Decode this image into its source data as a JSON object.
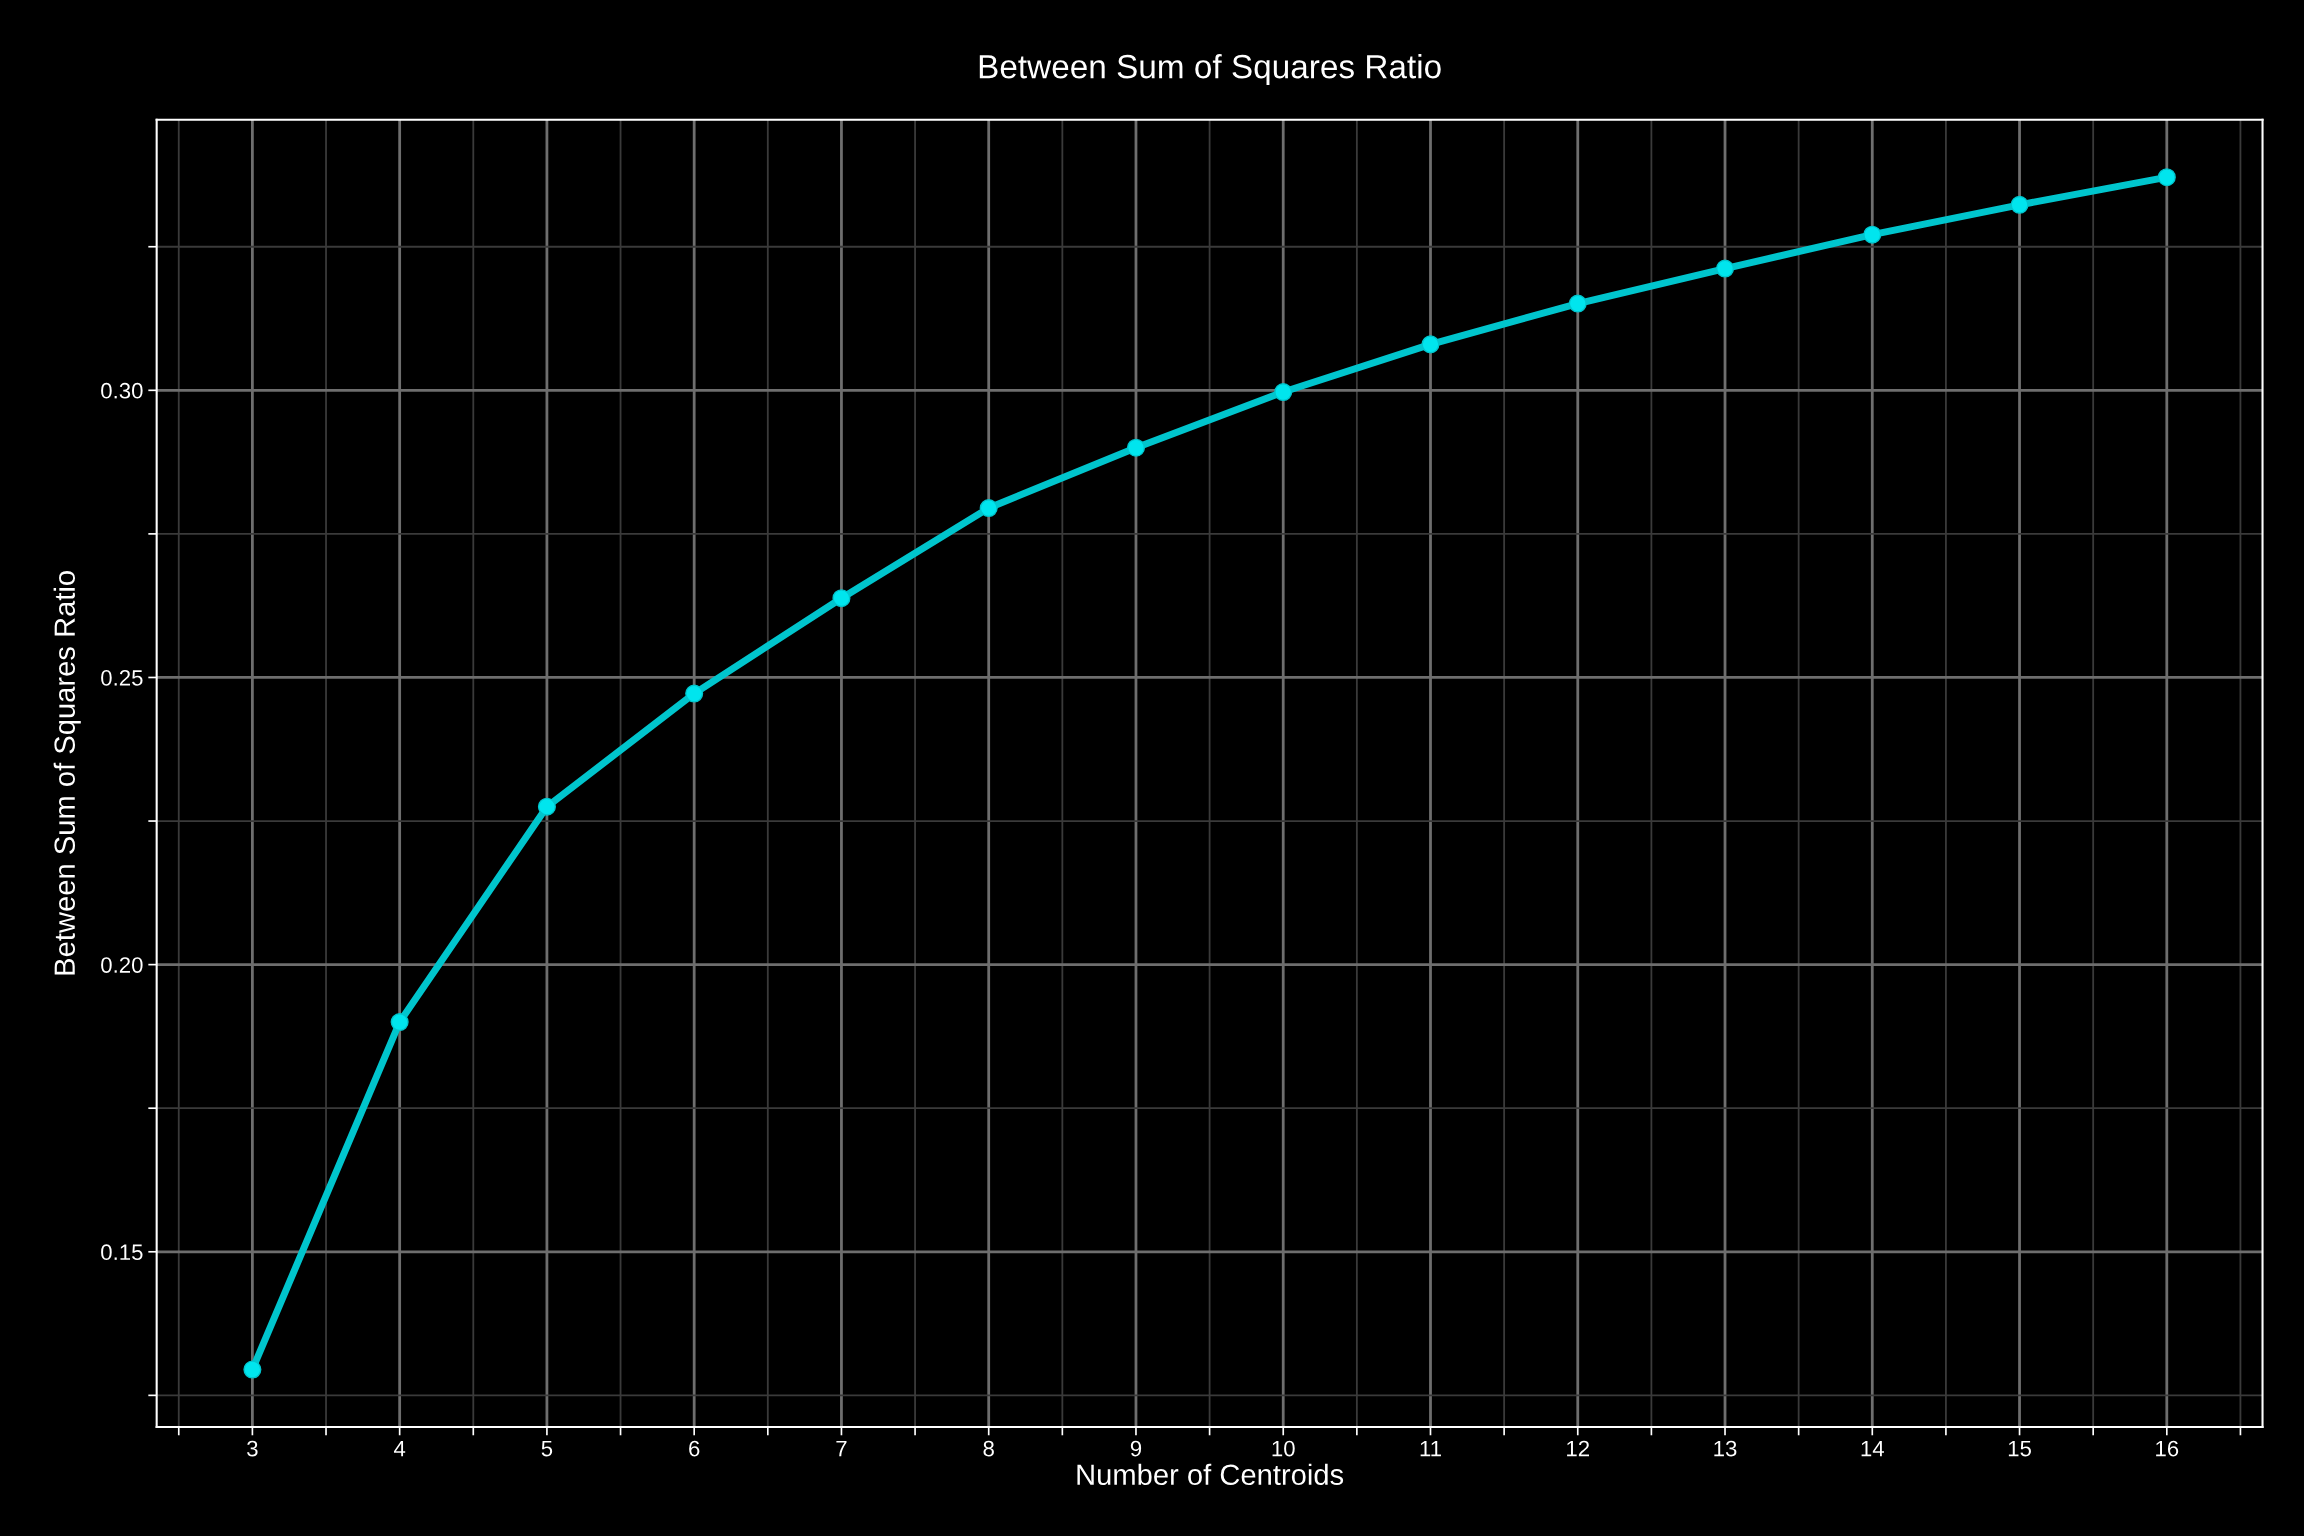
{
  "chart_data": {
    "type": "line",
    "title": "Between Sum of Squares Ratio",
    "xlabel": "Number of Centroids",
    "ylabel": "Between Sum of Squares Ratio",
    "x": [
      3,
      4,
      5,
      6,
      7,
      8,
      9,
      10,
      11,
      12,
      13,
      14,
      15,
      16
    ],
    "series": [
      {
        "color": "#00c5cd",
        "values": [
          0.1295,
          0.19,
          0.2275,
          0.2472,
          0.2638,
          0.2795,
          0.29,
          0.2997,
          0.308,
          0.3151,
          0.3212,
          0.3271,
          0.3323,
          0.3371
        ]
      }
    ],
    "xlim": [
      2.35,
      16.65
    ],
    "xticks": [
      {
        "value": 2.5,
        "label": null
      },
      3,
      {
        "value": 3.5,
        "label": null
      },
      4,
      {
        "value": 4.5,
        "label": null
      },
      5,
      {
        "value": 5.5,
        "label": null
      },
      6,
      {
        "value": 6.5,
        "label": null
      },
      7,
      {
        "value": 7.5,
        "label": null
      },
      8,
      {
        "value": 8.5,
        "label": null
      },
      9,
      {
        "value": 9.5,
        "label": null
      },
      10,
      {
        "value": 10.5,
        "label": null
      },
      11,
      {
        "value": 11.5,
        "label": null
      },
      12,
      {
        "value": 12.5,
        "label": null
      },
      13,
      {
        "value": 13.5,
        "label": null
      },
      14,
      {
        "value": 14.5,
        "label": null
      },
      15,
      {
        "value": 15.5,
        "label": null
      },
      16,
      {
        "value": 16.5,
        "label": null
      }
    ],
    "ylim": [
      0.1195,
      0.3471
    ],
    "yticks": [
      {
        "value": 0.125,
        "label": null
      },
      {
        "value": 0.15,
        "label": "0.15"
      },
      {
        "value": 0.175,
        "label": null
      },
      {
        "value": 0.2,
        "label": "0.20"
      },
      {
        "value": 0.225,
        "label": null
      },
      {
        "value": 0.25,
        "label": "0.25"
      },
      {
        "value": 0.275,
        "label": null
      },
      {
        "value": 0.3,
        "label": "0.30"
      },
      {
        "value": 0.325,
        "label": null
      }
    ],
    "grid": true,
    "marker": "circle",
    "line_style": "solid"
  }
}
